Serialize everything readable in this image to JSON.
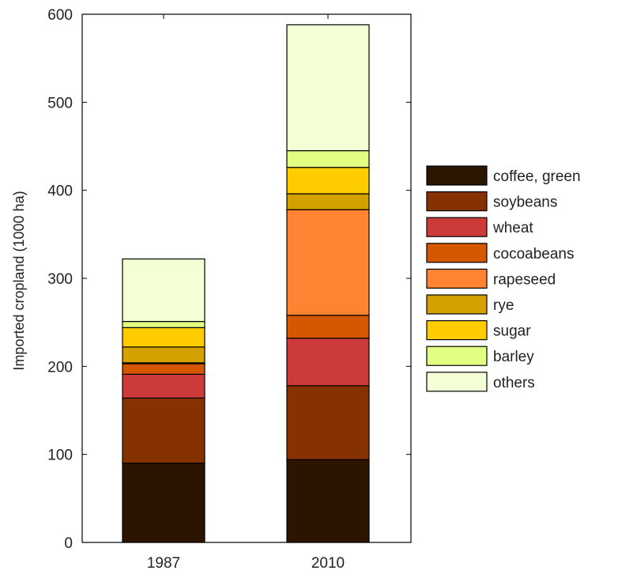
{
  "chart_data": {
    "type": "bar",
    "stacked": true,
    "categories": [
      "1987",
      "2010"
    ],
    "ylabel": "Imported cropland (1000 ha)",
    "xlabel": "",
    "ylim": [
      0,
      600
    ],
    "yticks": [
      0,
      100,
      200,
      300,
      400,
      500,
      600
    ],
    "grid": false,
    "legend_position": "right",
    "series": [
      {
        "name": "coffee, green",
        "color": "#2b1400",
        "values": [
          90,
          94
        ]
      },
      {
        "name": "soybeans",
        "color": "#853100",
        "values": [
          74,
          84
        ]
      },
      {
        "name": "wheat",
        "color": "#cc3a3a",
        "values": [
          27,
          54
        ]
      },
      {
        "name": "cocoabeans",
        "color": "#d55800",
        "values": [
          12,
          26
        ]
      },
      {
        "name": "rapeseed",
        "color": "#ff8333",
        "values": [
          1,
          120
        ]
      },
      {
        "name": "rye",
        "color": "#d4a100",
        "values": [
          18,
          18
        ]
      },
      {
        "name": "sugar",
        "color": "#ffcc00",
        "values": [
          22,
          30
        ]
      },
      {
        "name": "barley",
        "color": "#e1ff80",
        "values": [
          7,
          19
        ]
      },
      {
        "name": "others",
        "color": "#f3ffd5",
        "values": [
          71,
          143
        ]
      }
    ]
  }
}
